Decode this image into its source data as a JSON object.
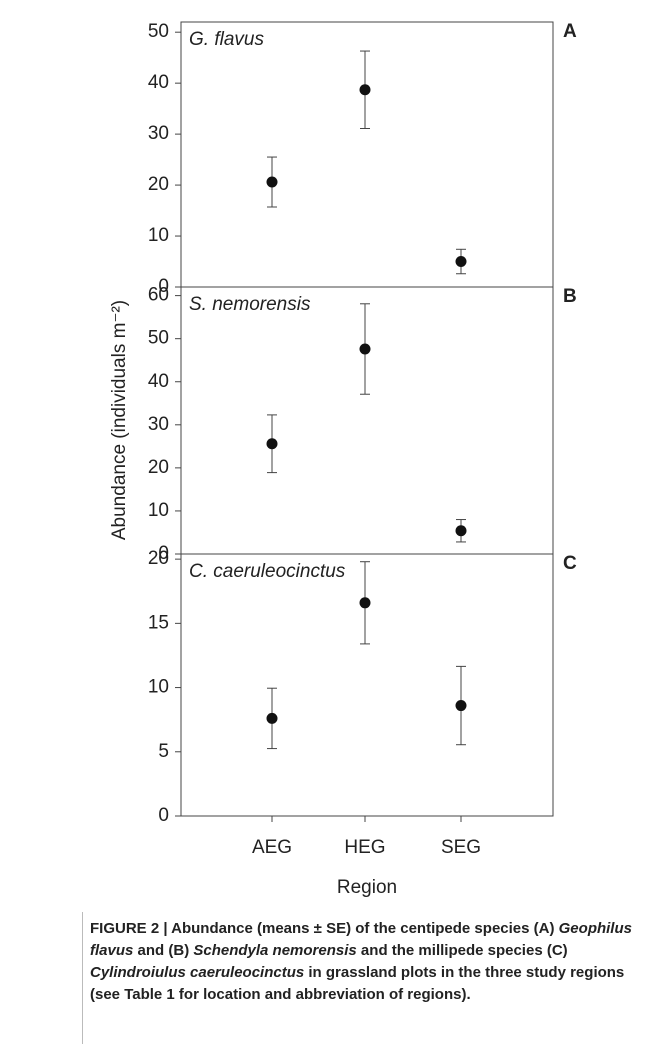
{
  "chart_data": [
    {
      "type": "errorbar",
      "title": "G. flavus",
      "panel_label": "A",
      "values": [
        20.6,
        38.7,
        5.0
      ],
      "errors": [
        4.9,
        7.6,
        2.4
      ],
      "ylim": [
        0,
        52
      ],
      "yticks": [
        0,
        10,
        20,
        30,
        40,
        50
      ],
      "color": "#111111"
    },
    {
      "type": "errorbar",
      "title": "S. nemorensis",
      "panel_label": "B",
      "ylabel": "Abundance (individuals m⁻²)",
      "values": [
        25.6,
        47.6,
        5.4
      ],
      "errors": [
        6.7,
        10.5,
        2.6
      ],
      "ylim": [
        0,
        62
      ],
      "yticks": [
        0,
        10,
        20,
        30,
        40,
        50,
        60
      ],
      "color": "#111111"
    },
    {
      "type": "errorbar",
      "title": "C. caeruleocinctus",
      "panel_label": "C",
      "xlabel": "Region",
      "categories": [
        "AEG",
        "HEG",
        "SEG"
      ],
      "values": [
        7.6,
        16.6,
        8.6
      ],
      "errors": [
        2.35,
        3.2,
        3.05
      ],
      "ylim": [
        0,
        20.4
      ],
      "yticks": [
        0,
        5,
        10,
        15,
        20
      ],
      "color": "#111111"
    }
  ],
  "caption": [
    "FIGURE 2 | Abundance (means ± SE) of the centipede species (A) ",
    "Geophilus flavus",
    " and (B) ",
    "Schendyla nemorensis",
    " and the millipede species (C) ",
    "Cylindroiulus caeruleocinctus",
    " in grassland plots in the three study regions (see Table 1 for location and abbreviation of regions)."
  ]
}
